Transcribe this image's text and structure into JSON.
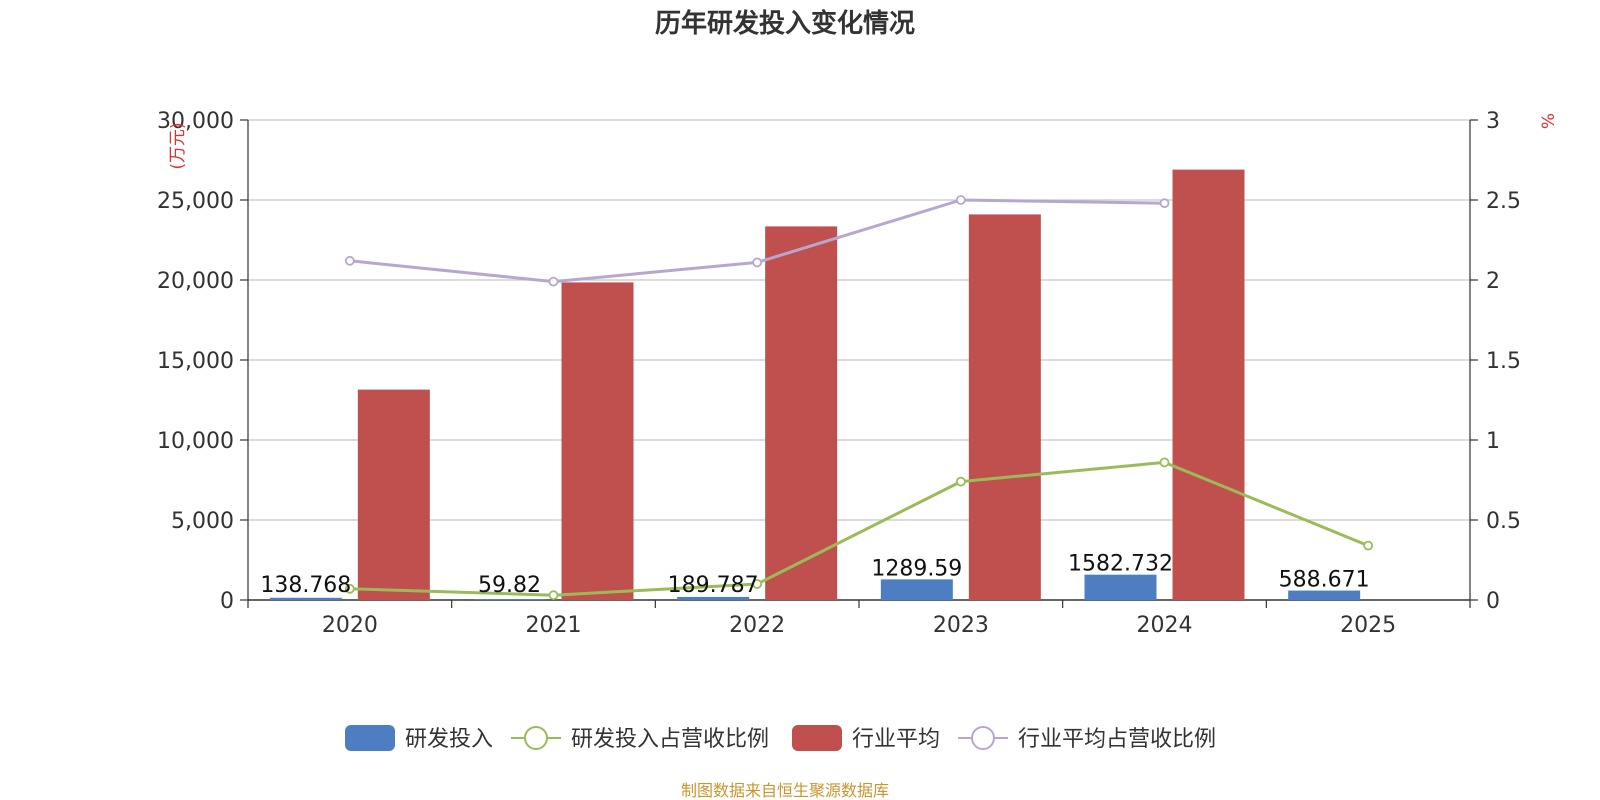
{
  "chart_data": {
    "type": "bar",
    "title": "历年研发投入变化情况",
    "categories": [
      "2020",
      "2021",
      "2022",
      "2023",
      "2024",
      "2025"
    ],
    "y_left": {
      "label": "(万元)",
      "ticks": [
        "0",
        "5,000",
        "10,000",
        "15,000",
        "20,000",
        "25,000",
        "30,000"
      ],
      "range": [
        0,
        30000
      ]
    },
    "y_right": {
      "label": "%",
      "ticks": [
        "0",
        "0.5",
        "1",
        "1.5",
        "2",
        "2.5",
        "3"
      ],
      "range": [
        0,
        3
      ]
    },
    "grid": true,
    "legend_position": "bottom",
    "series": [
      {
        "name": "研发投入",
        "type": "bar",
        "axis": "left",
        "color": "#4e7ec2",
        "values": [
          138.768,
          59.82,
          189.787,
          1289.59,
          1582.732,
          588.671
        ],
        "labels": [
          "138.768",
          "59.82",
          "189.787",
          "1289.59",
          "1582.732",
          "588.671"
        ]
      },
      {
        "name": "研发投入占营收比例",
        "type": "line",
        "axis": "right",
        "color": "#9bbb59",
        "values": [
          0.07,
          0.03,
          0.1,
          0.74,
          0.86,
          0.34
        ]
      },
      {
        "name": "行业平均",
        "type": "bar",
        "axis": "left",
        "color": "#c0504d",
        "values": [
          13150,
          19850,
          23350,
          24100,
          26900,
          null
        ]
      },
      {
        "name": "行业平均占营收比例",
        "type": "line",
        "axis": "right",
        "color": "#b7a7cf",
        "values": [
          2.12,
          1.99,
          2.11,
          2.5,
          2.48,
          null
        ]
      }
    ],
    "source": "制图数据来自恒生聚源数据库"
  }
}
